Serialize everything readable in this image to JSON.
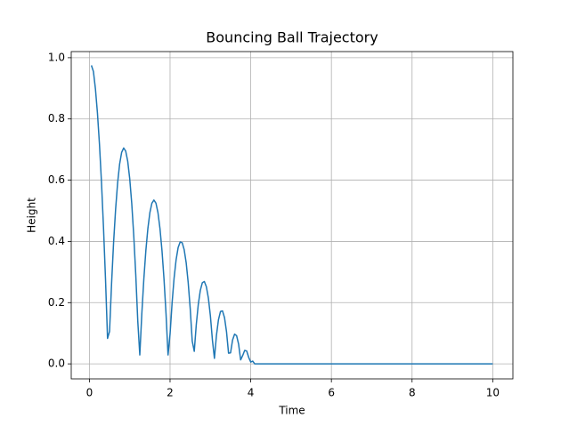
{
  "chart_data": {
    "type": "line",
    "title": "Bouncing Ball Trajectory",
    "x_label": "Time",
    "y_label": "Height",
    "x": [
      0.05,
      0.1,
      0.15,
      0.2,
      0.25,
      0.3,
      0.35,
      0.4,
      0.45,
      0.5,
      0.55,
      0.6,
      0.65,
      0.7,
      0.75,
      0.8,
      0.85,
      0.9,
      0.95,
      1.0,
      1.05,
      1.1,
      1.15,
      1.2,
      1.25,
      1.3,
      1.35,
      1.4,
      1.45,
      1.5,
      1.55,
      1.6,
      1.65,
      1.7,
      1.75,
      1.8,
      1.85,
      1.9,
      1.95,
      2.0,
      2.05,
      2.1,
      2.15,
      2.2,
      2.25,
      2.3,
      2.35,
      2.4,
      2.45,
      2.5,
      2.55,
      2.6,
      2.65,
      2.7,
      2.75,
      2.8,
      2.85,
      2.9,
      2.95,
      3.0,
      3.05,
      3.1,
      3.15,
      3.2,
      3.25,
      3.3,
      3.35,
      3.4,
      3.45,
      3.5,
      3.55,
      3.6,
      3.65,
      3.7,
      3.75,
      3.8,
      3.85,
      3.9,
      3.95,
      4.0,
      4.05,
      4.1,
      10
    ],
    "values": [
      0.975,
      0.955,
      0.898,
      0.819,
      0.717,
      0.593,
      0.445,
      0.276,
      0.083,
      0.106,
      0.262,
      0.396,
      0.505,
      0.591,
      0.653,
      0.691,
      0.705,
      0.695,
      0.662,
      0.605,
      0.524,
      0.419,
      0.291,
      0.139,
      0.029,
      0.164,
      0.277,
      0.37,
      0.442,
      0.494,
      0.525,
      0.535,
      0.525,
      0.494,
      0.442,
      0.37,
      0.277,
      0.164,
      0.029,
      0.097,
      0.198,
      0.28,
      0.34,
      0.38,
      0.398,
      0.396,
      0.373,
      0.33,
      0.265,
      0.18,
      0.074,
      0.041,
      0.128,
      0.194,
      0.24,
      0.265,
      0.269,
      0.252,
      0.215,
      0.157,
      0.078,
      0.018,
      0.093,
      0.144,
      0.171,
      0.173,
      0.151,
      0.105,
      0.035,
      0.036,
      0.078,
      0.097,
      0.092,
      0.064,
      0.013,
      0.027,
      0.044,
      0.042,
      0.021,
      0.006,
      0.009,
      0,
      0
    ],
    "color": "#1f77b4",
    "xlim": [
      -0.45,
      10.5
    ],
    "xticks": [
      0,
      2,
      4,
      6,
      8,
      10
    ],
    "ylim": [
      -0.049,
      1.02
    ],
    "yticks": [
      {
        "value": 0,
        "label": "0.0"
      },
      0.2,
      0.4,
      0.6,
      0.8,
      {
        "value": 1,
        "label": "1.0"
      }
    ],
    "grid": true
  }
}
